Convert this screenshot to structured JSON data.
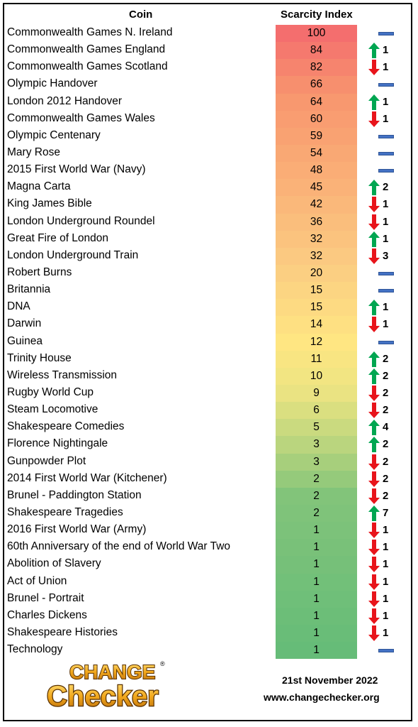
{
  "header": {
    "coin": "Coin",
    "scarcity": "Scarcity Index"
  },
  "colors": {
    "up": "#00a651",
    "down": "#e8141b",
    "same": "#4472c4"
  },
  "rows": [
    {
      "name": "Commonwealth Games N. Ireland",
      "index": "100",
      "trend": "same",
      "change": ""
    },
    {
      "name": "Commonwealth Games England",
      "index": "84",
      "trend": "up",
      "change": "1"
    },
    {
      "name": "Commonwealth Games Scotland",
      "index": "82",
      "trend": "down",
      "change": "1"
    },
    {
      "name": "Olympic Handover",
      "index": "66",
      "trend": "same",
      "change": ""
    },
    {
      "name": "London 2012 Handover",
      "index": "64",
      "trend": "up",
      "change": "1"
    },
    {
      "name": "Commonwealth Games Wales",
      "index": "60",
      "trend": "down",
      "change": "1"
    },
    {
      "name": "Olympic Centenary",
      "index": "59",
      "trend": "same",
      "change": ""
    },
    {
      "name": "Mary Rose",
      "index": "54",
      "trend": "same",
      "change": ""
    },
    {
      "name": "2015 First World War (Navy)",
      "index": "48",
      "trend": "same",
      "change": ""
    },
    {
      "name": "Magna Carta",
      "index": "45",
      "trend": "up",
      "change": "2"
    },
    {
      "name": "King James Bible",
      "index": "42",
      "trend": "down",
      "change": "1"
    },
    {
      "name": "London Underground Roundel",
      "index": "36",
      "trend": "down",
      "change": "1"
    },
    {
      "name": "Great Fire of London",
      "index": "32",
      "trend": "up",
      "change": "1"
    },
    {
      "name": "London Underground Train",
      "index": "32",
      "trend": "down",
      "change": "3"
    },
    {
      "name": "Robert Burns",
      "index": "20",
      "trend": "same",
      "change": ""
    },
    {
      "name": "Britannia",
      "index": "15",
      "trend": "same",
      "change": ""
    },
    {
      "name": "DNA",
      "index": "15",
      "trend": "up",
      "change": "1"
    },
    {
      "name": "Darwin",
      "index": "14",
      "trend": "down",
      "change": "1"
    },
    {
      "name": "Guinea",
      "index": "12",
      "trend": "same",
      "change": ""
    },
    {
      "name": "Trinity House",
      "index": "11",
      "trend": "up",
      "change": "2"
    },
    {
      "name": "Wireless Transmission",
      "index": "10",
      "trend": "up",
      "change": "2"
    },
    {
      "name": "Rugby World Cup",
      "index": "9",
      "trend": "down",
      "change": "2"
    },
    {
      "name": "Steam Locomotive",
      "index": "6",
      "trend": "down",
      "change": "2"
    },
    {
      "name": "Shakespeare Comedies",
      "index": "5",
      "trend": "up",
      "change": "4"
    },
    {
      "name": "Florence Nightingale",
      "index": "3",
      "trend": "up",
      "change": "2"
    },
    {
      "name": "Gunpowder Plot",
      "index": "3",
      "trend": "down",
      "change": "2"
    },
    {
      "name": "2014 First World War (Kitchener)",
      "index": "2",
      "trend": "down",
      "change": "2"
    },
    {
      "name": "Brunel - Paddington Station",
      "index": "2",
      "trend": "down",
      "change": "2"
    },
    {
      "name": "Shakespeare Tragedies",
      "index": "2",
      "trend": "up",
      "change": "7"
    },
    {
      "name": "2016 First World War (Army)",
      "index": "1",
      "trend": "down",
      "change": "1"
    },
    {
      "name": "60th Anniversary of the end of World War Two",
      "index": "1",
      "trend": "down",
      "change": "1"
    },
    {
      "name": "Abolition of Slavery",
      "index": "1",
      "trend": "down",
      "change": "1"
    },
    {
      "name": "Act of Union",
      "index": "1",
      "trend": "down",
      "change": "1"
    },
    {
      "name": "Brunel - Portrait",
      "index": "1",
      "trend": "down",
      "change": "1"
    },
    {
      "name": "Charles Dickens",
      "index": "1",
      "trend": "down",
      "change": "1"
    },
    {
      "name": "Shakespeare Histories",
      "index": "1",
      "trend": "down",
      "change": "1"
    },
    {
      "name": "Technology",
      "index": "1",
      "trend": "same",
      "change": ""
    }
  ],
  "logo": {
    "line1": "CHANGE",
    "line2": "Checker",
    "mark": "®"
  },
  "footer": {
    "date": "21st November 2022",
    "url": "www.changechecker.org"
  }
}
